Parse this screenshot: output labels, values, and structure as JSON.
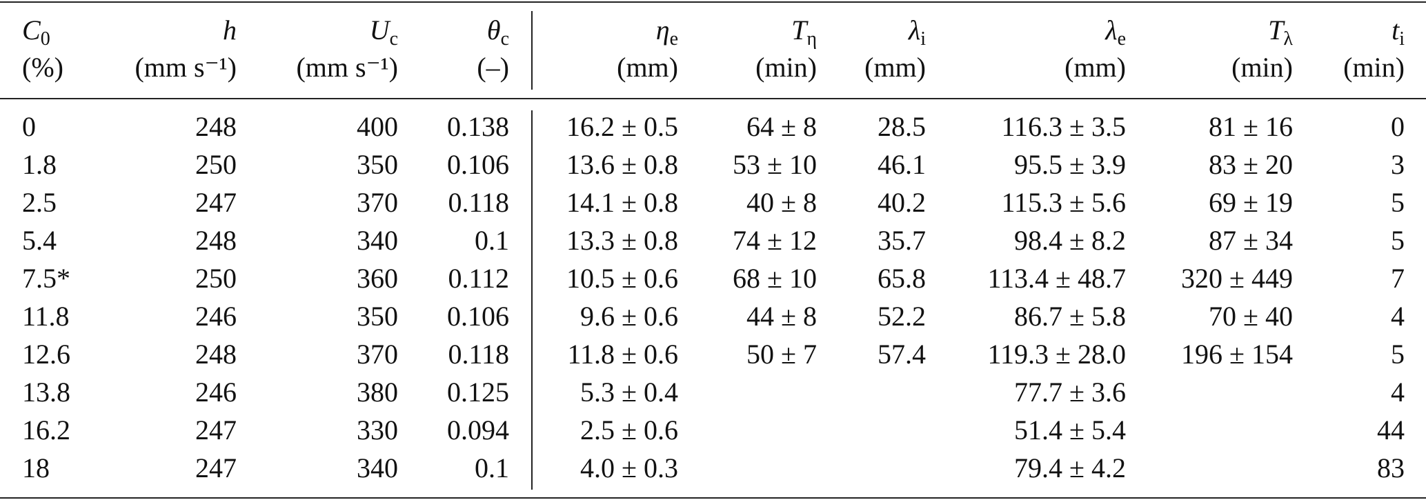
{
  "table": {
    "columns": [
      {
        "symbol": "C",
        "sub": "0",
        "unit": "(%)"
      },
      {
        "symbol": "h",
        "unit": "(mm s⁻¹)"
      },
      {
        "symbol": "U",
        "sub": "c",
        "unit": "(mm s⁻¹)"
      },
      {
        "symbol": "θ",
        "sub": "c",
        "unit": "(–)"
      },
      {
        "symbol": "η",
        "sub": "e",
        "unit": "(mm)"
      },
      {
        "symbol": "T",
        "sub": "η",
        "unit": "(min)"
      },
      {
        "symbol": "λ",
        "sub": "i",
        "unit": "(mm)"
      },
      {
        "symbol": "λ",
        "sub": "e",
        "unit": "(mm)"
      },
      {
        "symbol": "T",
        "sub": "λ",
        "unit": "(min)"
      },
      {
        "symbol": "t",
        "sub": "i",
        "unit": "(min)"
      }
    ],
    "rows": [
      [
        "0",
        "248",
        "400",
        "0.138",
        "16.2 ± 0.5",
        "64 ± 8",
        "28.5",
        "116.3 ± 3.5",
        "81 ± 16",
        "0"
      ],
      [
        "1.8",
        "250",
        "350",
        "0.106",
        "13.6 ± 0.8",
        "53 ± 10",
        "46.1",
        "95.5 ± 3.9",
        "83 ± 20",
        "3"
      ],
      [
        "2.5",
        "247",
        "370",
        "0.118",
        "14.1 ± 0.8",
        "40 ± 8",
        "40.2",
        "115.3 ± 5.6",
        "69 ± 19",
        "5"
      ],
      [
        "5.4",
        "248",
        "340",
        "0.1",
        "13.3 ± 0.8",
        "74 ± 12",
        "35.7",
        "98.4 ± 8.2",
        "87 ± 34",
        "5"
      ],
      [
        "7.5*",
        "250",
        "360",
        "0.112",
        "10.5 ± 0.6",
        "68 ± 10",
        "65.8",
        "113.4 ± 48.7",
        "320 ± 449",
        "7"
      ],
      [
        "11.8",
        "246",
        "350",
        "0.106",
        "9.6 ± 0.6",
        "44 ± 8",
        "52.2",
        "86.7 ± 5.8",
        "70 ± 40",
        "4"
      ],
      [
        "12.6",
        "248",
        "370",
        "0.118",
        "11.8 ± 0.6",
        "50 ± 7",
        "57.4",
        "119.3 ± 28.0",
        "196 ± 154",
        "5"
      ],
      [
        "13.8",
        "246",
        "380",
        "0.125",
        "5.3 ± 0.4",
        null,
        null,
        "77.7 ± 3.6",
        null,
        "4"
      ],
      [
        "16.2",
        "247",
        "330",
        "0.094",
        "2.5 ± 0.6",
        null,
        null,
        "51.4 ± 5.4",
        null,
        "44"
      ],
      [
        "18",
        "247",
        "340",
        "0.1",
        "4.0 ± 0.3",
        null,
        null,
        "79.4 ± 4.2",
        null,
        "83"
      ]
    ]
  }
}
